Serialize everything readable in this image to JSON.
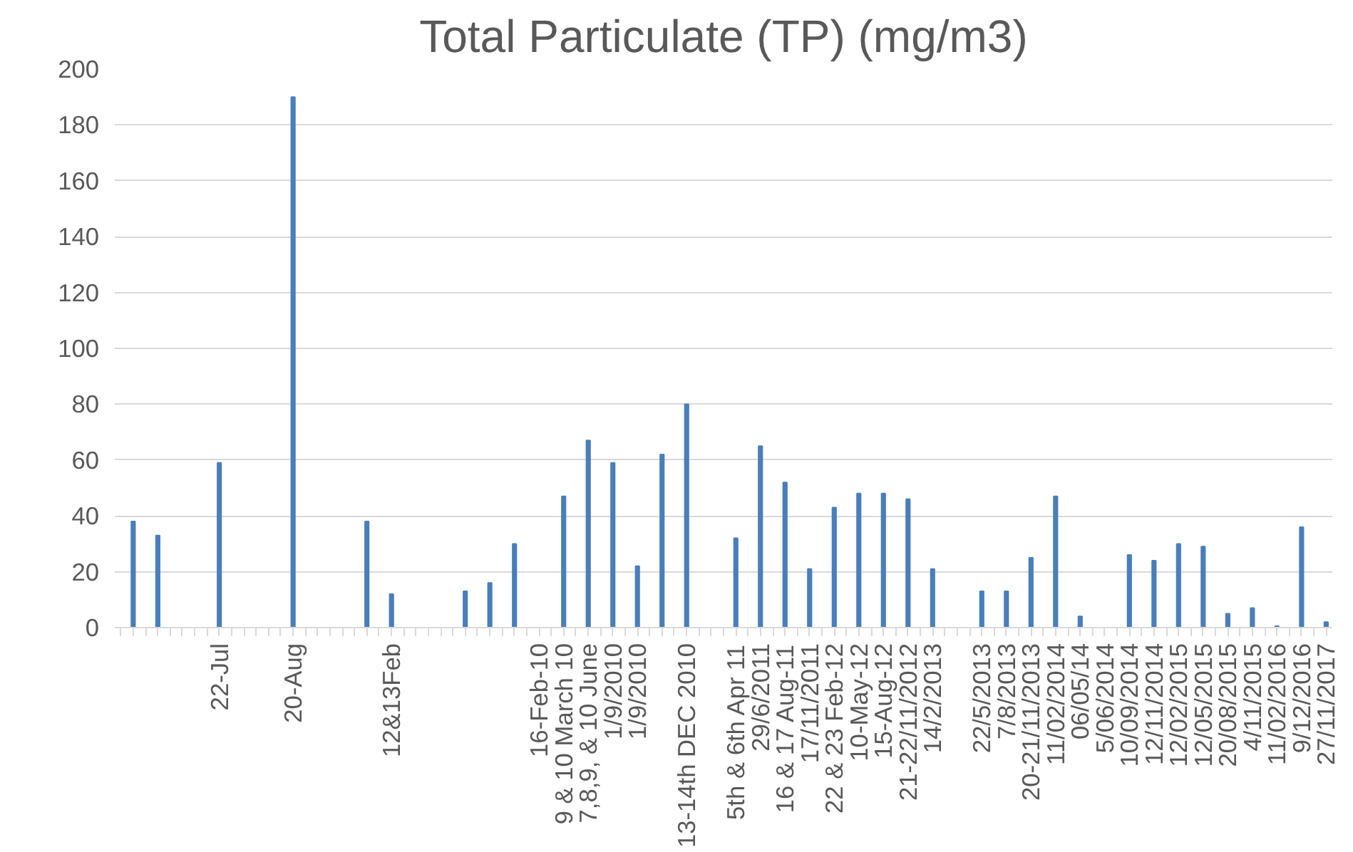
{
  "chart_data": {
    "type": "bar",
    "title": "Total Particulate (TP) (mg/m3)",
    "categories": [
      null,
      null,
      null,
      null,
      null,
      null,
      null,
      null,
      "22-Jul",
      null,
      null,
      null,
      null,
      null,
      "20-Aug",
      null,
      null,
      null,
      null,
      null,
      null,
      null,
      "12&13Feb",
      null,
      null,
      null,
      null,
      null,
      null,
      null,
      null,
      null,
      null,
      null,
      "16-Feb-10",
      null,
      "9 & 10 March 10",
      null,
      "7,8,9, & 10 June",
      null,
      "1/9/2010",
      null,
      "1/9/2010",
      null,
      null,
      null,
      "13-14th DEC 2010",
      null,
      null,
      null,
      "5th & 6th Apr 11",
      null,
      "29/6/2011",
      null,
      "16 & 17 Aug-11",
      null,
      "17/11/2011",
      null,
      "22 & 23 Feb-12",
      null,
      "10-May-12",
      null,
      "15-Aug-12",
      null,
      "21-22/11/2012",
      null,
      "14/2/2013",
      null,
      null,
      null,
      "22/5/2013",
      null,
      "7/8/2013",
      null,
      "20-21/11/2013",
      null,
      "11/02/2014",
      null,
      "06/05/14",
      null,
      "5/06/2014",
      null,
      "10/09/2014",
      null,
      "12/11/2014",
      null,
      "12/02/2015",
      null,
      "12/05/2015",
      null,
      "20/08/2015",
      null,
      "4/11/2015",
      null,
      "11/02/2016",
      null,
      "9/12/2016",
      null,
      "27/11/2017"
    ],
    "values": [
      null,
      38,
      null,
      33,
      null,
      null,
      null,
      null,
      59,
      null,
      null,
      null,
      null,
      null,
      190,
      null,
      null,
      null,
      null,
      null,
      38,
      null,
      12,
      null,
      null,
      null,
      null,
      null,
      13,
      null,
      16,
      null,
      30,
      null,
      null,
      null,
      47,
      null,
      67,
      null,
      59,
      null,
      22,
      null,
      62,
      null,
      80,
      null,
      null,
      null,
      32,
      null,
      65,
      null,
      52,
      null,
      21,
      null,
      43,
      null,
      48,
      null,
      48,
      null,
      46,
      null,
      21,
      null,
      null,
      null,
      13,
      null,
      13,
      null,
      25,
      null,
      47,
      null,
      4,
      null,
      null,
      null,
      26,
      null,
      24,
      null,
      30,
      null,
      29,
      null,
      5,
      null,
      7,
      null,
      0.5,
      null,
      36,
      null,
      2
    ],
    "color": "#4a7ebb",
    "ylim": [
      0,
      200
    ],
    "yticks": [
      0,
      20,
      40,
      60,
      80,
      100,
      120,
      140,
      160,
      180,
      200
    ],
    "grid": "y"
  }
}
